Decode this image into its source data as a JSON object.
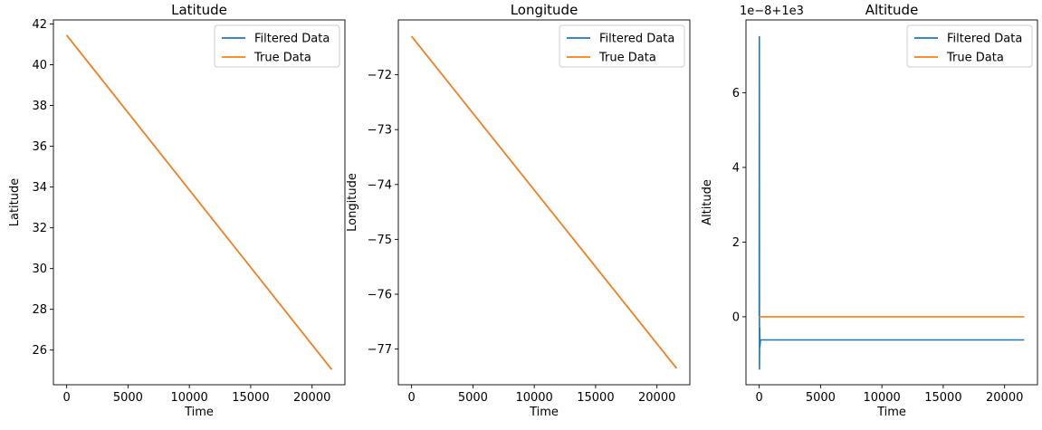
{
  "chart_data": [
    {
      "type": "line",
      "title": "Latitude",
      "xlabel": "Time",
      "ylabel": "Latitude",
      "xlim": [
        -1080,
        22680
      ],
      "ylim": [
        24.3,
        42.2
      ],
      "xticks": [
        0,
        5000,
        10000,
        15000,
        20000
      ],
      "xtick_labels": [
        "0",
        "5000",
        "10000",
        "15000",
        "20000"
      ],
      "yticks": [
        26,
        28,
        30,
        32,
        34,
        36,
        38,
        40,
        42
      ],
      "ytick_labels": [
        "26",
        "28",
        "30",
        "32",
        "34",
        "36",
        "38",
        "40",
        "42"
      ],
      "grid": false,
      "legend": "top-right",
      "series": [
        {
          "name": "Filtered Data",
          "color": "#1f77b4",
          "x": [
            0,
            21600
          ],
          "y": [
            41.45,
            25.05
          ]
        },
        {
          "name": "True Data",
          "color": "#ff7f0e",
          "x": [
            0,
            21600
          ],
          "y": [
            41.45,
            25.05
          ]
        }
      ]
    },
    {
      "type": "line",
      "title": "Longitude",
      "xlabel": "Time",
      "ylabel": "Longitude",
      "xlim": [
        -1080,
        22680
      ],
      "ylim": [
        -77.65,
        -71.0
      ],
      "xticks": [
        0,
        5000,
        10000,
        15000,
        20000
      ],
      "xtick_labels": [
        "0",
        "5000",
        "10000",
        "15000",
        "20000"
      ],
      "yticks": [
        -77,
        -76,
        -75,
        -74,
        -73,
        -72
      ],
      "ytick_labels": [
        "−77",
        "−76",
        "−75",
        "−74",
        "−73",
        "−72"
      ],
      "grid": false,
      "legend": "top-right",
      "series": [
        {
          "name": "Filtered Data",
          "color": "#1f77b4",
          "x": [
            0,
            21600
          ],
          "y": [
            -71.3,
            -77.35
          ]
        },
        {
          "name": "True Data",
          "color": "#ff7f0e",
          "x": [
            0,
            21600
          ],
          "y": [
            -71.3,
            -77.35
          ]
        }
      ]
    },
    {
      "type": "line",
      "title": "Altitude",
      "xlabel": "Time",
      "ylabel": "Altitude",
      "offset_label": "1e−8+1e3",
      "xlim": [
        -1080,
        22680
      ],
      "ylim": [
        -1.82,
        7.95
      ],
      "xticks": [
        0,
        5000,
        10000,
        15000,
        20000
      ],
      "xtick_labels": [
        "0",
        "5000",
        "10000",
        "15000",
        "20000"
      ],
      "yticks": [
        0,
        2,
        4,
        6
      ],
      "ytick_labels": [
        "0",
        "2",
        "4",
        "6"
      ],
      "grid": false,
      "legend": "top-right",
      "series": [
        {
          "name": "Filtered Data",
          "color": "#1f77b4",
          "x": [
            0,
            10,
            20,
            40,
            60,
            100,
            21600
          ],
          "y": [
            0,
            7.5,
            -1.4,
            -0.3,
            -0.8,
            -0.62,
            -0.62
          ]
        },
        {
          "name": "True Data",
          "color": "#ff7f0e",
          "x": [
            0,
            21600
          ],
          "y": [
            0,
            0
          ]
        }
      ]
    }
  ]
}
